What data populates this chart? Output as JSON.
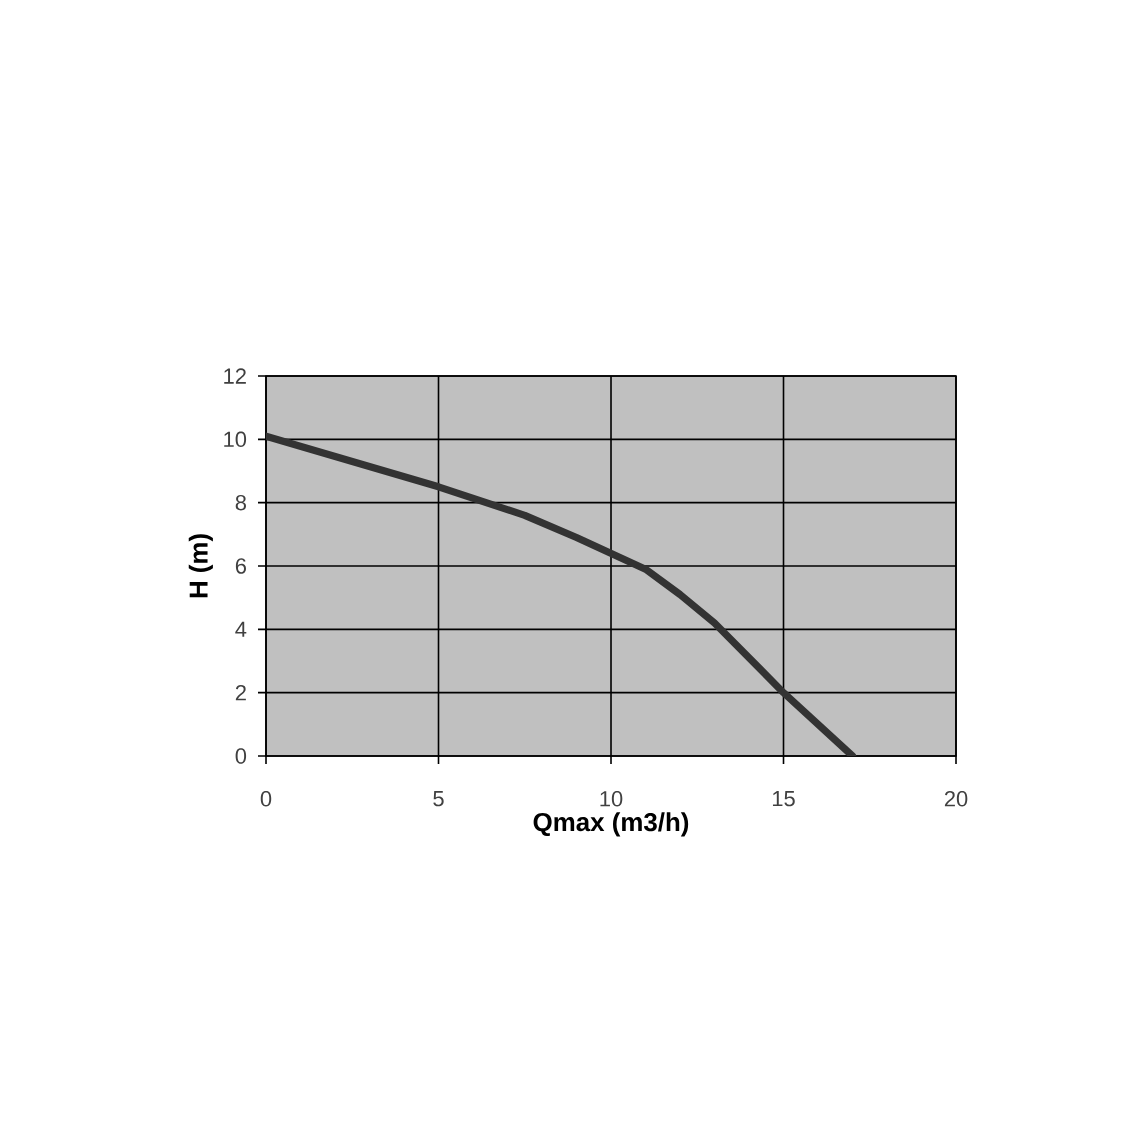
{
  "chart_data": {
    "type": "line",
    "xlabel": "Qmax (m3/h)",
    "ylabel": "H (m)",
    "x": [
      0,
      2.5,
      5,
      7.5,
      9,
      10,
      11,
      12,
      13,
      14,
      15,
      16,
      17
    ],
    "values": [
      10.1,
      9.3,
      8.5,
      7.6,
      6.9,
      6.4,
      5.9,
      5.1,
      4.2,
      3.1,
      2.0,
      1.0,
      0
    ],
    "color": "#333333",
    "line_style": "solid",
    "xlim": [
      0,
      20
    ],
    "ylim": [
      0,
      12
    ],
    "xticks": [
      0,
      5,
      10,
      15,
      20
    ],
    "yticks": [
      0,
      2,
      4,
      6,
      8,
      10,
      12
    ],
    "grid": true
  }
}
